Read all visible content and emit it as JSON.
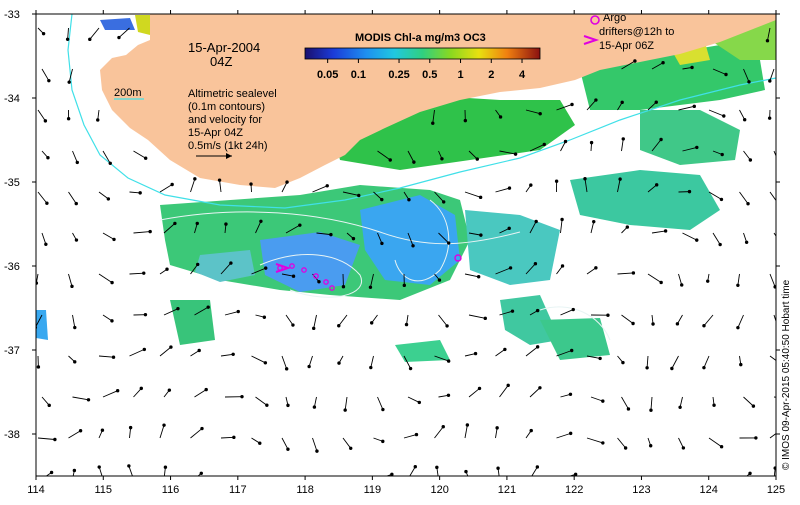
{
  "map": {
    "lon_ticks": [
      "114",
      "115",
      "116",
      "117",
      "118",
      "119",
      "120",
      "121",
      "122",
      "123",
      "124",
      "125"
    ],
    "lat_ticks": [
      "-33",
      "-34",
      "-35",
      "-36",
      "-37",
      "-38"
    ]
  },
  "labels": {
    "date": "15-Apr-2004",
    "hour": "04Z",
    "isobath": "200m",
    "sealevel_lines": [
      "Altimetric sealevel",
      "(0.1m contours)",
      "and velocity for",
      "15-Apr 04Z"
    ],
    "velocity_scale": "0.5m/s (1kt 24h)",
    "argo_lines": [
      "Argo",
      "drifters@12h to",
      "15-Apr 06Z"
    ],
    "credit": "© IMOS 09-Apr-2015 05:40:50 Hobart time"
  },
  "colorbar": {
    "title": "MODIS Chl-a mg/m3 OC3",
    "ticks": [
      "0.05",
      "0.1",
      "0.25",
      "0.5",
      "1",
      "2",
      "4"
    ]
  },
  "colors": {
    "land": "#f9c49b",
    "isobath": "#40e0e8",
    "contour": "#e8f4f4",
    "argo": "#e000e0"
  }
}
